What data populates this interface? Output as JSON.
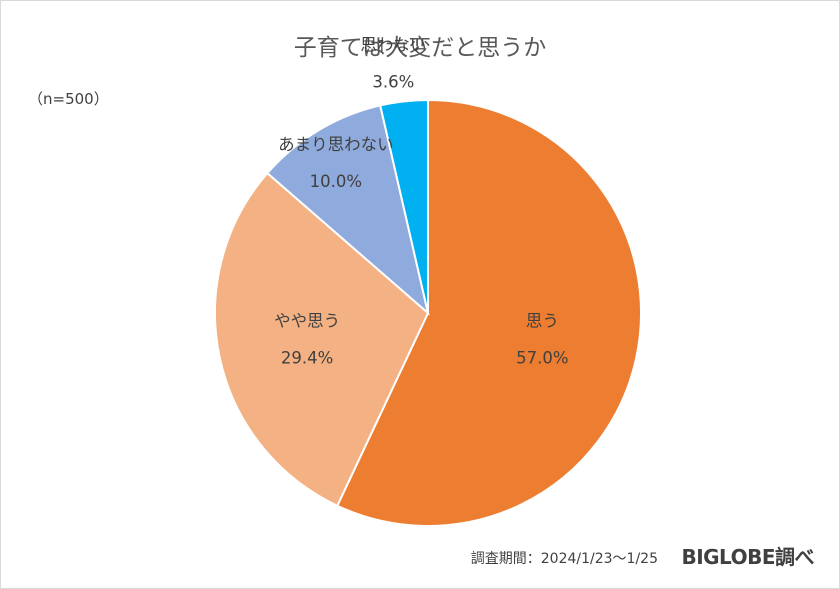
{
  "chart_data": {
    "type": "pie",
    "title": "子育ては大変だと思うか",
    "sample_note": "（n=500）",
    "start_angle_deg": 0,
    "direction": "clockwise",
    "slices": [
      {
        "label": "思う",
        "value": 57.0,
        "value_label": "57.0%",
        "color": "#ed7d31"
      },
      {
        "label": "やや思う",
        "value": 29.4,
        "value_label": "29.4%",
        "color": "#f4b183"
      },
      {
        "label": "あまり思わない",
        "value": 10.0,
        "value_label": "10.0%",
        "color": "#8faadc"
      },
      {
        "label": "思わない",
        "value": 3.6,
        "value_label": "3.6%",
        "color": "#00b0f0"
      }
    ],
    "legend": "none",
    "data_labels": "category and value on slice"
  },
  "footer": {
    "period": "調査期間：2024/1/23～1/25",
    "source": "BIGLOBE調べ"
  }
}
